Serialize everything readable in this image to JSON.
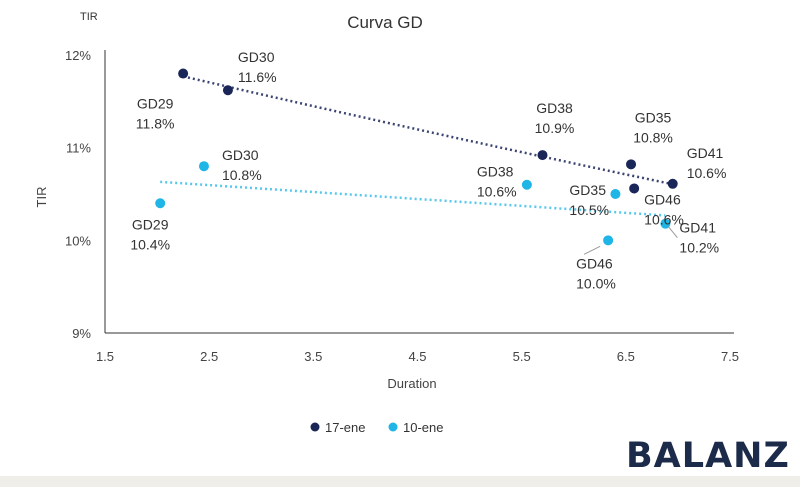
{
  "colors": {
    "series1": "#1a2558",
    "series2": "#1fb5e6",
    "brand": "#1c2b4a"
  },
  "brand_logo": "BALANZ",
  "chart_data": {
    "type": "scatter",
    "title": "Curva GD",
    "y_unit_label": "TIR",
    "xlabel": "Duration",
    "ylabel": "TIR",
    "xlim": [
      1.5,
      7.5
    ],
    "ylim": [
      9,
      12
    ],
    "x_ticks": [
      "1.5",
      "2.5",
      "3.5",
      "4.5",
      "5.5",
      "6.5",
      "7.5"
    ],
    "y_ticks": [
      "9%",
      "10%",
      "11%",
      "12%"
    ],
    "legend_position": "bottom",
    "series": [
      {
        "name": "17-ene",
        "trendline": "dotted",
        "points": [
          {
            "x": 2.25,
            "y": 11.8,
            "name": "GD29",
            "value": "11.8%"
          },
          {
            "x": 2.68,
            "y": 11.62,
            "name": "GD30",
            "value": "11.6%"
          },
          {
            "x": 5.7,
            "y": 10.92,
            "name": "GD38",
            "value": "10.9%"
          },
          {
            "x": 6.55,
            "y": 10.82,
            "name": "GD35",
            "value": "10.8%"
          },
          {
            "x": 6.58,
            "y": 10.56,
            "name": "GD46",
            "value": "10.6%"
          },
          {
            "x": 6.95,
            "y": 10.61,
            "name": "GD41",
            "value": "10.6%"
          }
        ]
      },
      {
        "name": "10-ene",
        "trendline": "dotted",
        "points": [
          {
            "x": 2.03,
            "y": 10.4,
            "name": "GD29",
            "value": "10.4%"
          },
          {
            "x": 2.45,
            "y": 10.8,
            "name": "GD30",
            "value": "10.8%"
          },
          {
            "x": 5.55,
            "y": 10.6,
            "name": "GD38",
            "value": "10.6%"
          },
          {
            "x": 6.4,
            "y": 10.5,
            "name": "GD35",
            "value": "10.5%"
          },
          {
            "x": 6.33,
            "y": 10.0,
            "name": "GD46",
            "value": "10.0%"
          },
          {
            "x": 6.88,
            "y": 10.18,
            "name": "GD41",
            "value": "10.2%"
          }
        ]
      }
    ]
  }
}
